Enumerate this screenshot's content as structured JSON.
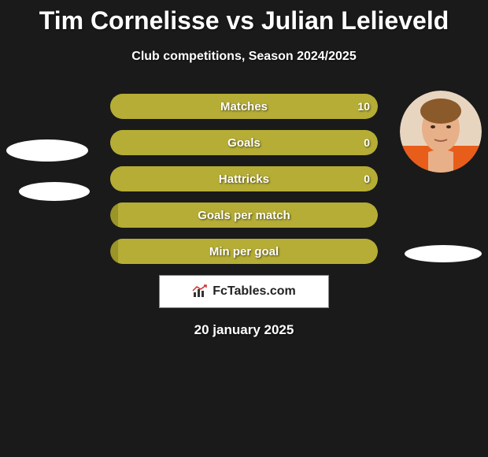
{
  "title": "Tim Cornelisse vs Julian Lelieveld",
  "subtitle": "Club competitions, Season 2024/2025",
  "date": "20 january 2025",
  "logo_text": "FcTables.com",
  "colors": {
    "bg": "#1a1a1a",
    "bar_base": "#9b9428",
    "bar_fill": "#b5ad35",
    "white": "#ffffff"
  },
  "stats": [
    {
      "label": "Matches",
      "left_val": "",
      "right_val": "10",
      "left_pct": 0,
      "right_pct": 100
    },
    {
      "label": "Goals",
      "left_val": "",
      "right_val": "0",
      "left_pct": 0,
      "right_pct": 100
    },
    {
      "label": "Hattricks",
      "left_val": "",
      "right_val": "0",
      "left_pct": 0,
      "right_pct": 100
    },
    {
      "label": "Goals per match",
      "left_val": "",
      "right_val": "",
      "left_pct": 0,
      "right_pct": 97
    },
    {
      "label": "Min per goal",
      "left_val": "",
      "right_val": "",
      "left_pct": 0,
      "right_pct": 97
    }
  ]
}
